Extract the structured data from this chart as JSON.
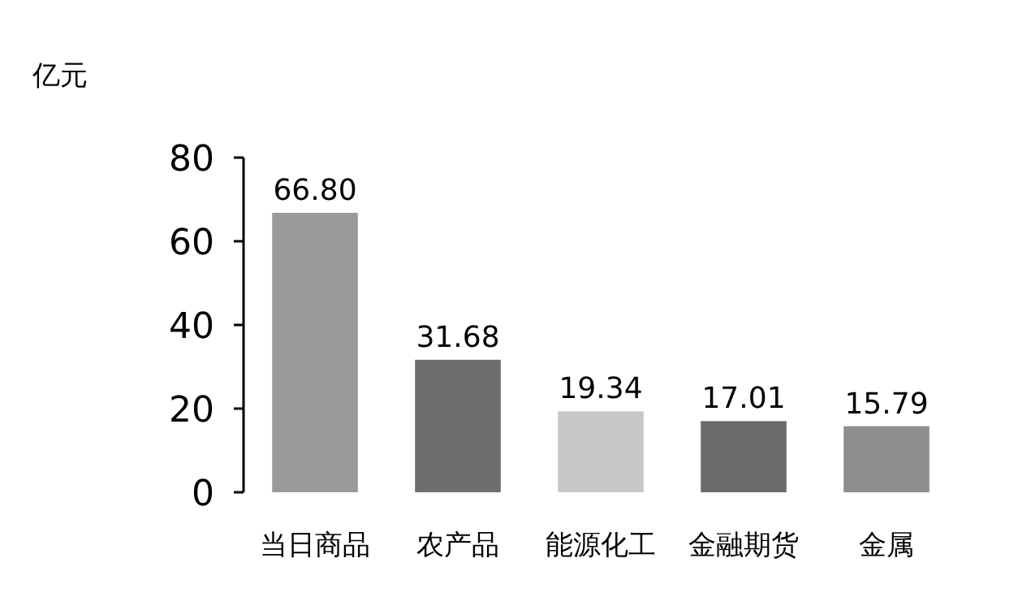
{
  "chart_data": {
    "type": "bar",
    "ylabel": "亿元",
    "categories": [
      "当日商品",
      "农产品",
      "能源化工",
      "金融期货",
      "金属"
    ],
    "values": [
      66.8,
      31.68,
      19.34,
      17.01,
      15.79
    ],
    "value_labels": [
      "66.80",
      "31.68",
      "19.34",
      "17.01",
      "15.79"
    ],
    "colors": [
      "#9a9a9a",
      "#6e6e6e",
      "#c8c8c8",
      "#6a6a6a",
      "#8e8e8e"
    ],
    "ylim": [
      0,
      80
    ],
    "yticks": [
      0,
      20,
      40,
      60,
      80
    ]
  }
}
